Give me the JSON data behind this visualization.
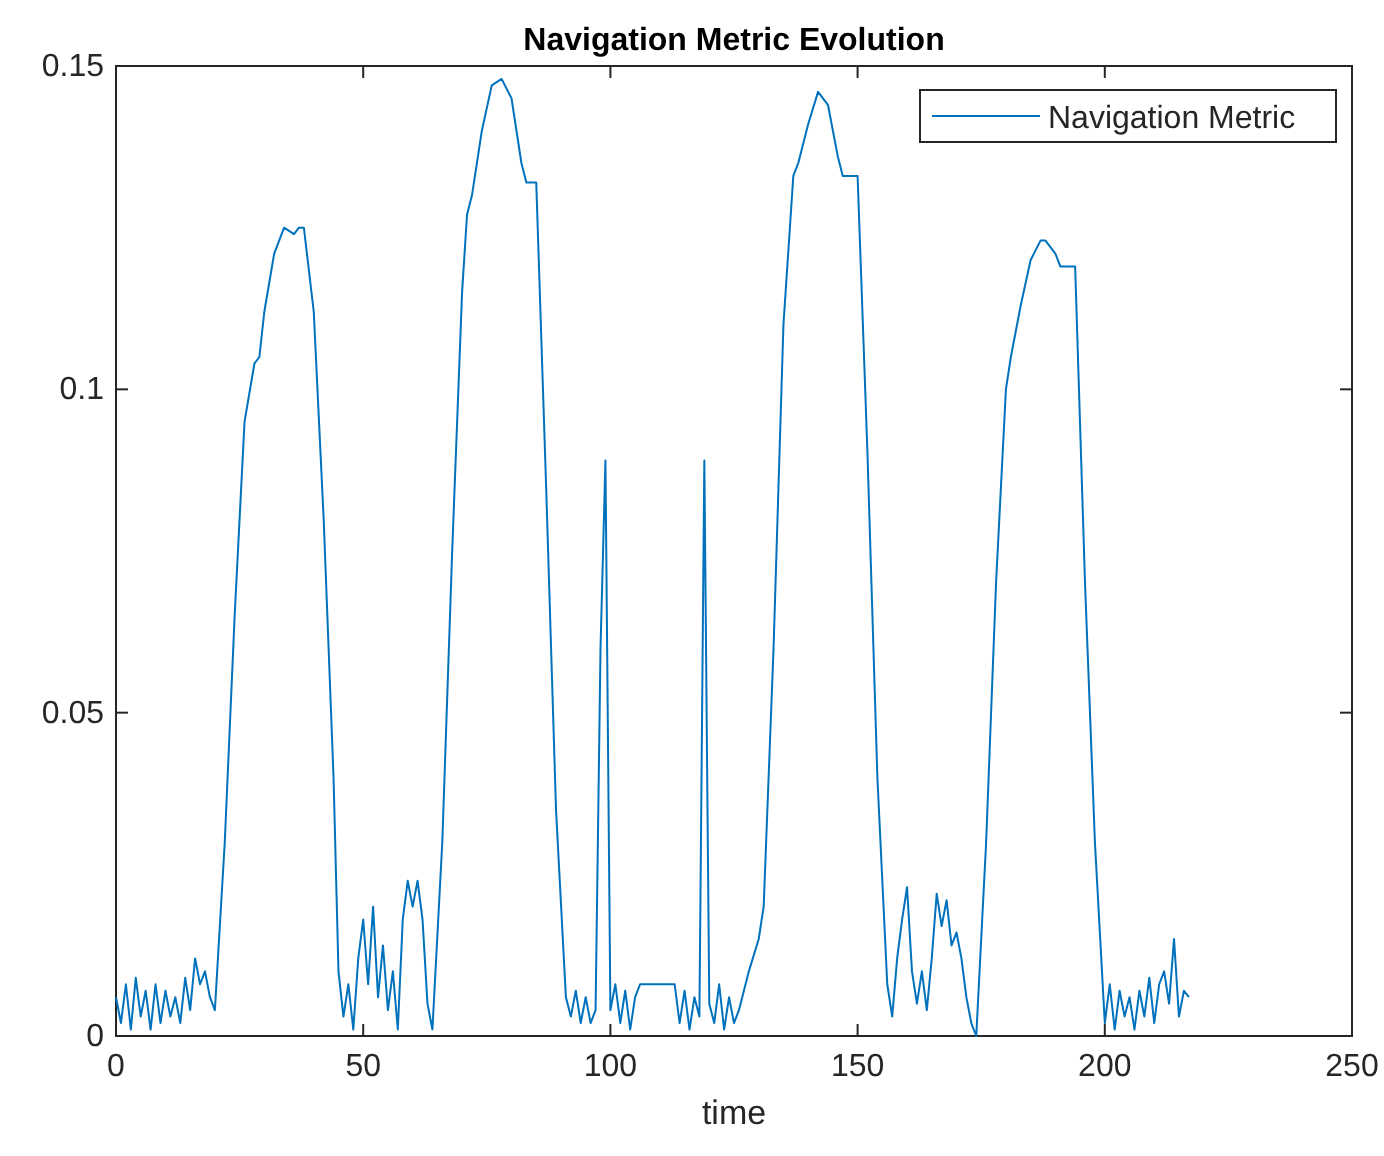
{
  "chart_data": {
    "type": "line",
    "title": "Navigation Metric Evolution",
    "xlabel": "time",
    "legend": "top right",
    "grid": false,
    "xlim": [
      0,
      250
    ],
    "xticks": [
      0,
      50,
      100,
      150,
      200,
      250
    ],
    "ylim": [
      0,
      0.15
    ],
    "yticks": [
      0,
      0.05,
      0.1,
      0.15
    ],
    "series": [
      {
        "name": "Navigation Metric",
        "color": "#0072bd",
        "x": [
          0,
          1,
          2,
          3,
          4,
          5,
          6,
          7,
          8,
          9,
          10,
          11,
          12,
          13,
          14,
          15,
          16,
          17,
          18,
          19,
          20,
          22,
          24,
          26,
          28,
          29,
          30,
          32,
          34,
          36,
          37,
          38,
          40,
          42,
          44,
          45,
          46,
          47,
          48,
          49,
          50,
          51,
          52,
          53,
          54,
          55,
          56,
          57,
          58,
          59,
          60,
          61,
          62,
          63,
          64,
          66,
          68,
          70,
          71,
          72,
          74,
          76,
          78,
          80,
          82,
          83,
          85,
          87,
          89,
          91,
          92,
          93,
          94,
          95,
          96,
          97,
          98,
          99,
          100,
          101,
          102,
          103,
          104,
          105,
          106,
          110,
          113,
          114,
          115,
          116,
          117,
          118,
          119,
          120,
          121,
          122,
          123,
          124,
          125,
          126,
          128,
          130,
          131,
          133,
          135,
          137,
          138,
          140,
          142,
          144,
          146,
          147,
          150,
          152,
          154,
          156,
          157,
          158,
          159,
          160,
          161,
          162,
          163,
          164,
          165,
          166,
          167,
          168,
          169,
          170,
          171,
          172,
          173,
          174,
          176,
          178,
          180,
          181,
          183,
          185,
          187,
          188,
          190,
          191,
          194,
          196,
          198,
          200,
          201,
          202,
          203,
          204,
          205,
          206,
          207,
          208,
          209,
          210,
          211,
          212,
          213,
          214,
          215,
          216,
          217
        ],
        "values": [
          0.006,
          0.002,
          0.008,
          0.001,
          0.009,
          0.003,
          0.007,
          0.001,
          0.008,
          0.002,
          0.007,
          0.003,
          0.006,
          0.002,
          0.009,
          0.004,
          0.012,
          0.008,
          0.01,
          0.006,
          0.004,
          0.03,
          0.065,
          0.095,
          0.104,
          0.105,
          0.112,
          0.121,
          0.125,
          0.124,
          0.125,
          0.125,
          0.112,
          0.08,
          0.04,
          0.01,
          0.003,
          0.008,
          0.001,
          0.012,
          0.018,
          0.008,
          0.02,
          0.006,
          0.014,
          0.004,
          0.01,
          0.001,
          0.018,
          0.024,
          0.02,
          0.024,
          0.018,
          0.005,
          0.001,
          0.03,
          0.075,
          0.115,
          0.127,
          0.13,
          0.14,
          0.147,
          0.148,
          0.145,
          0.135,
          0.132,
          0.132,
          0.085,
          0.035,
          0.006,
          0.003,
          0.007,
          0.002,
          0.006,
          0.002,
          0.004,
          0.06,
          0.089,
          0.004,
          0.008,
          0.002,
          0.007,
          0.001,
          0.006,
          0.008,
          0.008,
          0.008,
          0.002,
          0.007,
          0.001,
          0.006,
          0.003,
          0.089,
          0.005,
          0.002,
          0.008,
          0.001,
          0.006,
          0.002,
          0.004,
          0.01,
          0.015,
          0.02,
          0.06,
          0.11,
          0.133,
          0.135,
          0.141,
          0.146,
          0.144,
          0.136,
          0.133,
          0.133,
          0.09,
          0.04,
          0.008,
          0.003,
          0.012,
          0.018,
          0.023,
          0.01,
          0.005,
          0.01,
          0.004,
          0.012,
          0.022,
          0.017,
          0.021,
          0.014,
          0.016,
          0.012,
          0.006,
          0.002,
          0.0,
          0.03,
          0.07,
          0.1,
          0.105,
          0.113,
          0.12,
          0.123,
          0.123,
          0.121,
          0.119,
          0.119,
          0.07,
          0.03,
          0.002,
          0.008,
          0.001,
          0.007,
          0.003,
          0.006,
          0.001,
          0.007,
          0.003,
          0.009,
          0.002,
          0.008,
          0.01,
          0.005,
          0.015,
          0.003,
          0.007,
          0.006
        ]
      }
    ]
  }
}
